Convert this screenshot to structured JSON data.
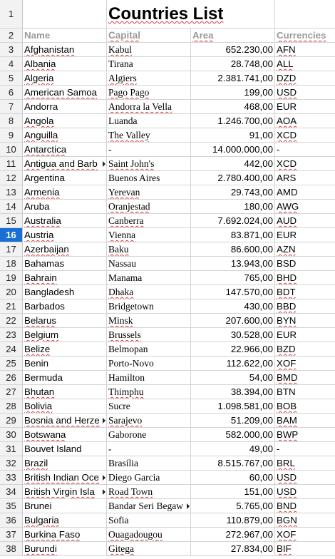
{
  "title": "Countries List",
  "headers": {
    "name": "Name",
    "capital": "Capital",
    "area": "Area",
    "currencies": "Currencies"
  },
  "row_numbers": [
    "1",
    "2",
    "3",
    "4",
    "5",
    "6",
    "7",
    "8",
    "9",
    "10",
    "11",
    "12",
    "13",
    "14",
    "15",
    "16",
    "17",
    "18",
    "19",
    "20",
    "21",
    "22",
    "23",
    "24",
    "25",
    "26",
    "27",
    "28",
    "29",
    "30",
    "31",
    "32",
    "33",
    "34",
    "35",
    "36",
    "37",
    "38"
  ],
  "selected_row": "16",
  "rows": [
    {
      "name": "Afghanistan",
      "capital": "Kabul",
      "area": "652.230,00",
      "cur": "AFN"
    },
    {
      "name": "Albania",
      "capital": "Tirana",
      "area": "28.748,00",
      "cur": "ALL"
    },
    {
      "name": "Algeria",
      "capital": "Algiers",
      "area": "2.381.741,00",
      "cur": "DZD"
    },
    {
      "name": "American Samoa",
      "capital": "Pago Pago",
      "area": "199,00",
      "cur": "USD"
    },
    {
      "name": "Andorra",
      "capital": "Andorra la Vella",
      "area": "468,00",
      "cur": "EUR"
    },
    {
      "name": "Angola",
      "capital": "Luanda",
      "area": "1.246.700,00",
      "cur": "AOA"
    },
    {
      "name": "Anguilla",
      "capital": "The Valley",
      "area": "91,00",
      "cur": "XCD"
    },
    {
      "name": "Antarctica",
      "capital": "-",
      "area": "14.000.000,00",
      "cur": "-"
    },
    {
      "name": "Antigua and Barb",
      "capital": "Saint John's",
      "area": "442,00",
      "cur": "XCD"
    },
    {
      "name": "Argentina",
      "capital": "Buenos Aires",
      "area": "2.780.400,00",
      "cur": "ARS"
    },
    {
      "name": "Armenia",
      "capital": "Yerevan",
      "area": "29.743,00",
      "cur": "AMD"
    },
    {
      "name": "Aruba",
      "capital": "Oranjestad",
      "area": "180,00",
      "cur": "AWG"
    },
    {
      "name": "Australia",
      "capital": "Canberra",
      "area": "7.692.024,00",
      "cur": "AUD"
    },
    {
      "name": "Austria",
      "capital": "Vienna",
      "area": "83.871,00",
      "cur": "EUR"
    },
    {
      "name": "Azerbaijan",
      "capital": "Baku",
      "area": "86.600,00",
      "cur": "AZN"
    },
    {
      "name": "Bahamas",
      "capital": "Nassau",
      "area": "13.943,00",
      "cur": "BSD"
    },
    {
      "name": "Bahrain",
      "capital": "Manama",
      "area": "765,00",
      "cur": "BHD"
    },
    {
      "name": "Bangladesh",
      "capital": "Dhaka",
      "area": "147.570,00",
      "cur": "BDT"
    },
    {
      "name": "Barbados",
      "capital": "Bridgetown",
      "area": "430,00",
      "cur": "BBD"
    },
    {
      "name": "Belarus",
      "capital": "Minsk",
      "area": "207.600,00",
      "cur": "BYN"
    },
    {
      "name": "Belgium",
      "capital": "Brussels",
      "area": "30.528,00",
      "cur": "EUR"
    },
    {
      "name": "Belize",
      "capital": "Belmopan",
      "area": "22.966,00",
      "cur": "BZD"
    },
    {
      "name": "Benin",
      "capital": "Porto-Novo",
      "area": "112.622,00",
      "cur": "XOF"
    },
    {
      "name": "Bermuda",
      "capital": "Hamilton",
      "area": "54,00",
      "cur": "BMD"
    },
    {
      "name": "Bhutan",
      "capital": "Thimphu",
      "area": "38.394,00",
      "cur": "BTN"
    },
    {
      "name": "Bolivia",
      "capital": "Sucre",
      "area": "1.098.581,00",
      "cur": "BOB"
    },
    {
      "name": "Bosnia and Herze",
      "capital": "Sarajevo",
      "area": "51.209,00",
      "cur": "BAM"
    },
    {
      "name": "Botswana",
      "capital": "Gaborone",
      "area": "582.000,00",
      "cur": "BWP"
    },
    {
      "name": "Bouvet Island",
      "capital": "-",
      "area": "49,00",
      "cur": "-"
    },
    {
      "name": "Brazil",
      "capital": "Brasília",
      "area": "8.515.767,00",
      "cur": "BRL"
    },
    {
      "name": "British Indian Oce",
      "capital": "Diego Garcia",
      "area": "60,00",
      "cur": "USD"
    },
    {
      "name": "British Virgin Isla",
      "capital": "Road Town",
      "area": "151,00",
      "cur": "USD"
    },
    {
      "name": "Brunei",
      "capital": "Bandar Seri Begaw",
      "area": "5.765,00",
      "cur": "BND"
    },
    {
      "name": "Bulgaria",
      "capital": "Sofia",
      "area": "110.879,00",
      "cur": "BGN"
    },
    {
      "name": "Burkina Faso",
      "capital": "Ouagadougou",
      "area": "272.967,00",
      "cur": "XOF"
    },
    {
      "name": "Burundi",
      "capital": "Gitega",
      "area": "27.834,00",
      "cur": "BIF"
    }
  ],
  "colors": {
    "selected_row_header": "#1a6fd6",
    "header_text": "#9b9b9b",
    "spellcheck": "#d63a3a"
  }
}
